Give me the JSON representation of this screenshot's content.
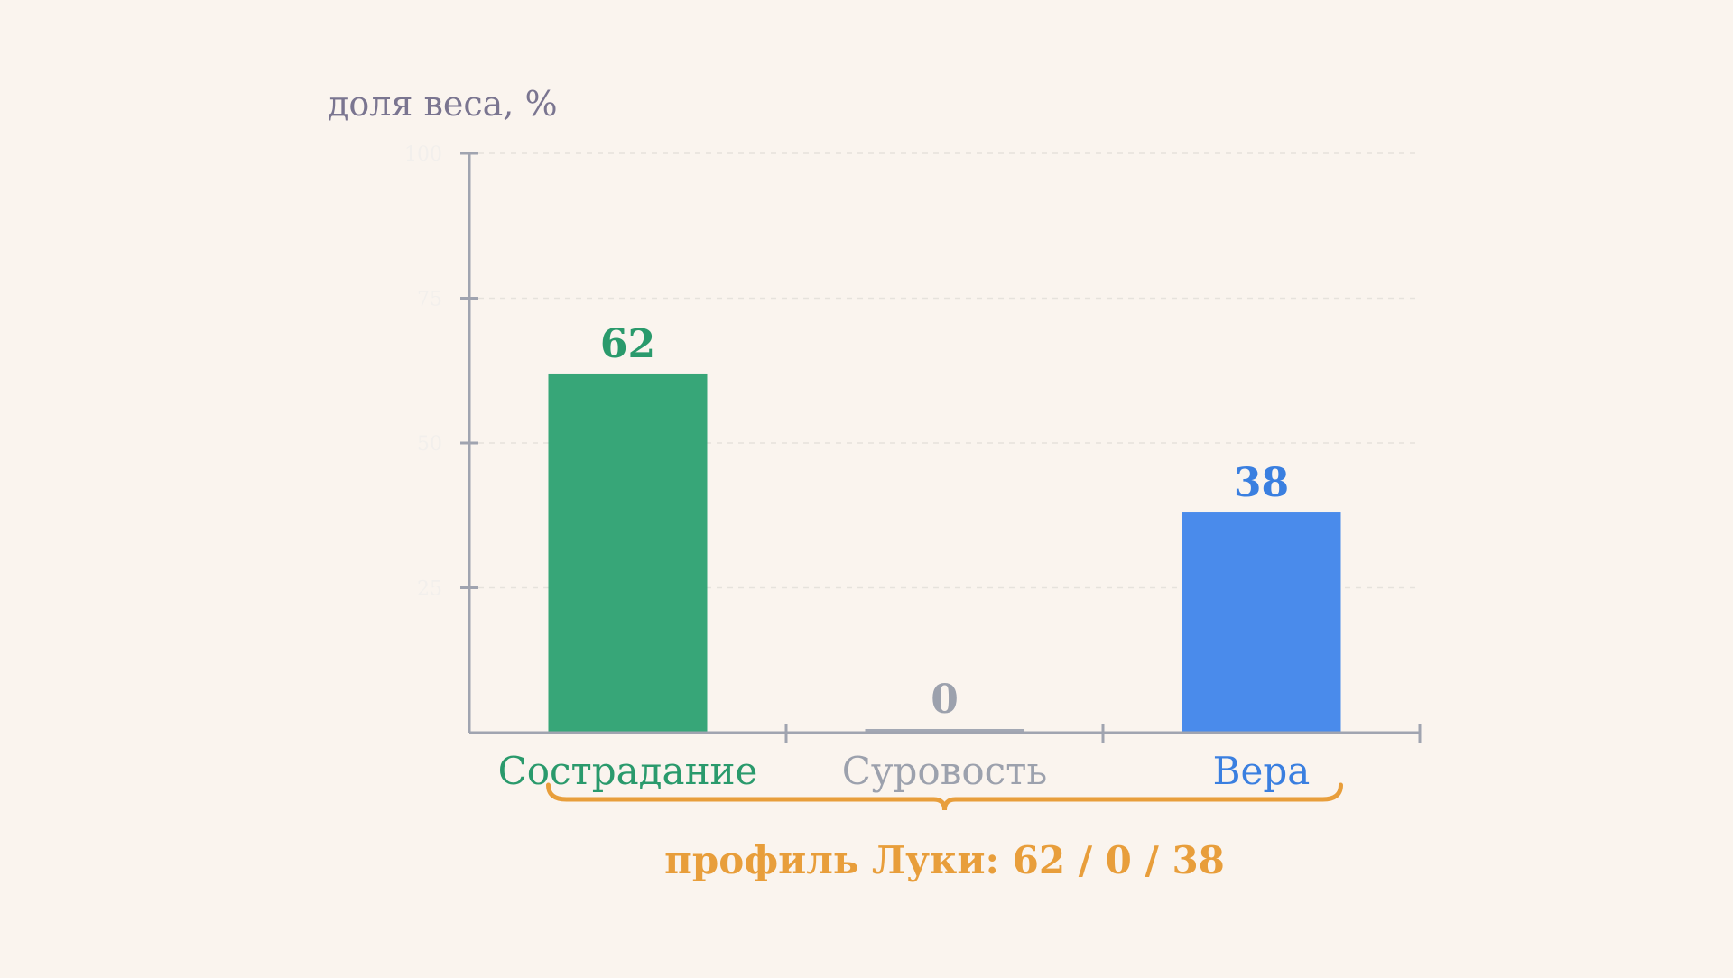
{
  "chart_data": {
    "type": "bar",
    "ylabel": "доля веса, %",
    "ylim": [
      0,
      100
    ],
    "yticks": [
      25,
      50,
      75,
      100
    ],
    "grid": true,
    "categories": [
      "Сострадание",
      "Суровость",
      "Вера"
    ],
    "values": [
      62,
      0,
      38
    ],
    "value_labels": [
      "62",
      "0",
      "38"
    ],
    "colors": [
      "#37a678",
      "#a3a8b4",
      "#4a8beb"
    ],
    "label_colors": [
      "#2a9a6c",
      "#9ca1ad",
      "#3a7fe0"
    ],
    "annotation": "профиль Луки: 62 / 0 / 38",
    "annotation_color": "#e89e3b",
    "axis_color": "#a0a4b0",
    "ylabel_color": "#7a7590",
    "tick_label_color": "#f2efec"
  }
}
